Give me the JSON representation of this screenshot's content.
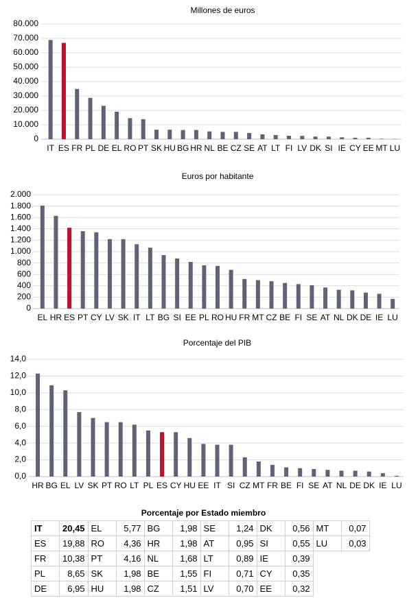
{
  "chart_data": [
    {
      "type": "bar",
      "title": "Millones de euros",
      "categories": [
        "IT",
        "ES",
        "FR",
        "PL",
        "DE",
        "EL",
        "RO",
        "PT",
        "SK",
        "HU",
        "BG",
        "HR",
        "NL",
        "BE",
        "CZ",
        "SE",
        "AT",
        "LT",
        "FI",
        "LV",
        "DK",
        "SI",
        "IE",
        "CY",
        "EE",
        "MT",
        "LU"
      ],
      "values": [
        68900,
        66900,
        34900,
        28700,
        23200,
        19100,
        14600,
        13900,
        6600,
        6600,
        6400,
        6400,
        5400,
        5100,
        5100,
        4300,
        3400,
        2900,
        2400,
        2300,
        1800,
        1800,
        1300,
        1000,
        1000,
        300,
        200
      ],
      "color": "#5f6278",
      "highlight": "ES",
      "highlight_color": "#c0102c",
      "ylim": [
        0,
        80000
      ],
      "yticks": [
        0,
        {
          "value": 10000,
          "label": "10.000"
        },
        {
          "value": 20000,
          "label": "20.000"
        },
        {
          "value": 30000,
          "label": "30.000"
        },
        {
          "value": 40000,
          "label": "40.000"
        },
        {
          "value": 50000,
          "label": "50.000"
        },
        {
          "value": 60000,
          "label": "60.000"
        },
        {
          "value": 70000,
          "label": "70.000"
        },
        {
          "value": 80000,
          "label": "80.000"
        }
      ],
      "grid": true
    },
    {
      "type": "bar",
      "title": "Euros por habitante",
      "categories": [
        "EL",
        "HR",
        "ES",
        "PT",
        "CY",
        "LV",
        "SK",
        "IT",
        "LT",
        "BG",
        "SI",
        "EE",
        "PL",
        "RO",
        "HU",
        "FR",
        "MT",
        "CZ",
        "BE",
        "FI",
        "SE",
        "AT",
        "NL",
        "DK",
        "DE",
        "IE",
        "LU"
      ],
      "values": [
        1810,
        1630,
        1420,
        1360,
        1340,
        1220,
        1220,
        1130,
        1070,
        940,
        880,
        820,
        760,
        750,
        680,
        520,
        500,
        480,
        450,
        430,
        410,
        370,
        330,
        320,
        280,
        260,
        170
      ],
      "color": "#5f6278",
      "highlight": "ES",
      "highlight_color": "#c0102c",
      "ylim": [
        0,
        2000
      ],
      "yticks": [
        0,
        200,
        400,
        600,
        800,
        {
          "value": 1000,
          "label": "1.000"
        },
        {
          "value": 1200,
          "label": "1.200"
        },
        {
          "value": 1400,
          "label": "1.400"
        },
        {
          "value": 1600,
          "label": "1.600"
        },
        {
          "value": 1800,
          "label": "1.800"
        },
        {
          "value": 2000,
          "label": "2.000"
        }
      ],
      "grid": true
    },
    {
      "type": "bar",
      "title": "Porcentaje del PIB",
      "categories": [
        "HR",
        "BG",
        "EL",
        "LV",
        "SK",
        "PT",
        "RO",
        "LT",
        "PL",
        "ES",
        "CY",
        "HU",
        "EE",
        "IT",
        "SI",
        "CZ",
        "MT",
        "FR",
        "BE",
        "FI",
        "SE",
        "AT",
        "NL",
        "DE",
        "DK",
        "IE",
        "LU"
      ],
      "values": [
        12.3,
        10.9,
        10.3,
        7.7,
        7.0,
        6.5,
        6.5,
        6.2,
        5.5,
        5.3,
        5.3,
        4.6,
        3.9,
        3.8,
        3.8,
        2.3,
        1.8,
        1.4,
        1.1,
        1.0,
        0.9,
        0.8,
        0.7,
        0.7,
        0.6,
        0.4,
        0.1
      ],
      "color": "#5f6278",
      "highlight": "ES",
      "highlight_color": "#c0102c",
      "ylim": [
        0,
        14
      ],
      "yticks": [
        {
          "value": 0,
          "label": "0,0"
        },
        {
          "value": 2,
          "label": "2,0"
        },
        {
          "value": 4,
          "label": "4,0"
        },
        {
          "value": 6,
          "label": "6,0"
        },
        {
          "value": 8,
          "label": "8,0"
        },
        {
          "value": 10,
          "label": "10,0"
        },
        {
          "value": 12,
          "label": "12,0"
        },
        {
          "value": 14,
          "label": "14,0"
        }
      ],
      "grid": true
    }
  ],
  "table": {
    "title": "Porcentaje por Estado miembro",
    "rows": [
      [
        "IT",
        "20,45",
        "EL",
        "5,77",
        "BG",
        "1,98",
        "SE",
        "1,24",
        "DK",
        "0,56",
        "MT",
        "0,07"
      ],
      [
        "ES",
        "19,88",
        "RO",
        "4,36",
        "HR",
        "1,98",
        "AT",
        "0,95",
        "SI",
        "0,55",
        "LU",
        "0,03"
      ],
      [
        "FR",
        "10,38",
        "PT",
        "4,16",
        "NL",
        "1,68",
        "LT",
        "0,89",
        "IE",
        "0,39"
      ],
      [
        "PL",
        "8,65",
        "SK",
        "1,98",
        "BE",
        "1,55",
        "FI",
        "0,71",
        "CY",
        "0,35"
      ],
      [
        "DE",
        "6,95",
        "HU",
        "1,98",
        "CZ",
        "1,51",
        "LV",
        "0,70",
        "EE",
        "0,32"
      ]
    ]
  }
}
